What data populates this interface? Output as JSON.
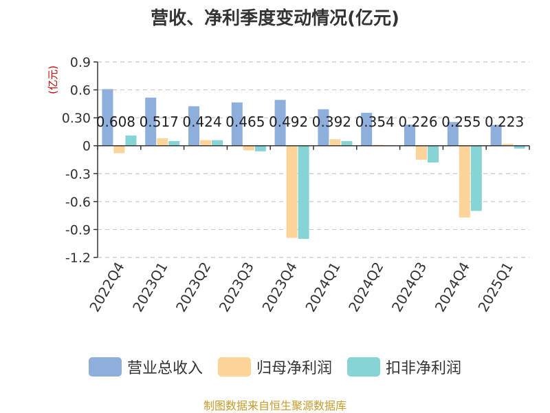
{
  "title": "营收、净利季度变动情况(亿元)",
  "source": "制图数据来自恒生聚源数据库",
  "colors": {
    "revenue": "#8eaedb",
    "net_profit": "#fdd49a",
    "deducted_profit": "#86d4d6",
    "axis": "#333333",
    "grid": "#c8c8c8",
    "unit_label": "#cc0000"
  },
  "chart_data": {
    "type": "bar",
    "title": "营收、净利季度变动情况(亿元)",
    "ylabel": "(亿元)",
    "ylim": [
      -1.2,
      0.9
    ],
    "yticks": [
      0.9,
      0.6,
      0.3,
      0,
      -0.3,
      -0.6,
      -0.9,
      -1.2
    ],
    "ytick_labels": [
      "0.9",
      "0.6",
      "0.30",
      "0",
      "-0.3",
      "-0.6",
      "-0.9",
      "-1.2"
    ],
    "grid": true,
    "legend_position": "bottom",
    "categories": [
      "2022Q4",
      "2023Q1",
      "2023Q2",
      "2023Q3",
      "2023Q4",
      "2024Q1",
      "2024Q2",
      "2024Q3",
      "2024Q4",
      "2025Q1"
    ],
    "series": [
      {
        "name": "营业总收入",
        "color": "#8eaedb",
        "values": [
          0.608,
          0.517,
          0.424,
          0.465,
          0.492,
          0.392,
          0.354,
          0.226,
          0.255,
          0.223
        ],
        "data_labels": [
          "0.608",
          "0.517",
          "0.424",
          "0.465",
          "0.492",
          "0.392",
          "0.354",
          "0.226",
          "0.255",
          "0.223"
        ]
      },
      {
        "name": "归母净利润",
        "color": "#fdd49a",
        "values": [
          -0.08,
          0.08,
          0.06,
          -0.05,
          -0.99,
          0.07,
          0.01,
          -0.15,
          -0.77,
          0.02
        ]
      },
      {
        "name": "扣非净利润",
        "color": "#86d4d6",
        "values": [
          0.11,
          0.05,
          0.06,
          -0.06,
          -1.0,
          0.05,
          0.005,
          -0.18,
          -0.7,
          -0.03
        ]
      }
    ]
  }
}
